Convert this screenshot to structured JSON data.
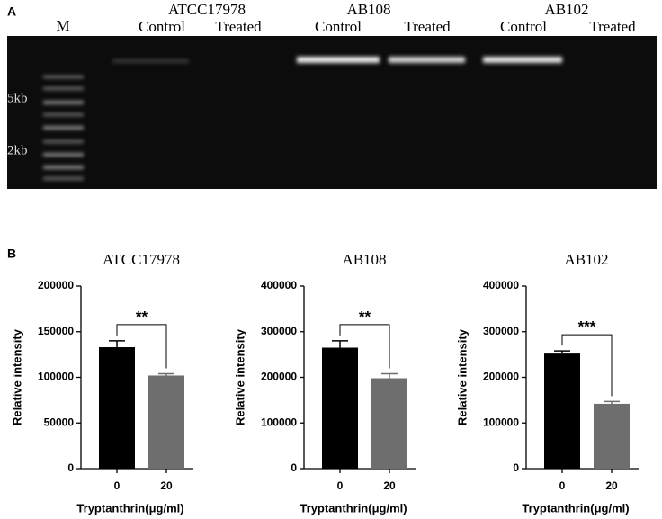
{
  "panel_a": {
    "label": "A",
    "marker": "M",
    "size_markers": [
      "5kb",
      "2kb"
    ],
    "groups": [
      {
        "name": "ATCC17978",
        "lanes": [
          "Control",
          "Treated"
        ]
      },
      {
        "name": "AB108",
        "lanes": [
          "Control",
          "Treated"
        ]
      },
      {
        "name": "AB102",
        "lanes": [
          "Control",
          "Treated"
        ]
      }
    ]
  },
  "panel_b": {
    "label": "B"
  },
  "chart_data": [
    {
      "type": "bar",
      "title": "ATCC17978",
      "categories": [
        "0",
        "20"
      ],
      "values": [
        133000,
        102000
      ],
      "errors": [
        7000,
        2000
      ],
      "colors": [
        "#000000",
        "#6e6e6e"
      ],
      "ylim": [
        0,
        200000
      ],
      "yticks": [
        0,
        50000,
        100000,
        150000,
        200000
      ],
      "xlabel": "Tryptanthrin(μg/ml)",
      "ylabel": "Relative intensity",
      "significance": "**"
    },
    {
      "type": "bar",
      "title": "AB108",
      "categories": [
        "0",
        "20"
      ],
      "values": [
        265000,
        198000
      ],
      "errors": [
        15000,
        10000
      ],
      "colors": [
        "#000000",
        "#6e6e6e"
      ],
      "ylim": [
        0,
        400000
      ],
      "yticks": [
        0,
        100000,
        200000,
        300000,
        400000
      ],
      "xlabel": "Tryptanthrin(μg/ml)",
      "ylabel": "Relative intensity",
      "significance": "**"
    },
    {
      "type": "bar",
      "title": "AB102",
      "categories": [
        "0",
        "20"
      ],
      "values": [
        252000,
        142000
      ],
      "errors": [
        6000,
        5000
      ],
      "colors": [
        "#000000",
        "#6e6e6e"
      ],
      "ylim": [
        0,
        400000
      ],
      "yticks": [
        0,
        100000,
        200000,
        300000,
        400000
      ],
      "xlabel": "Tryptanthrin(μg/ml)",
      "ylabel": "Relative intensity",
      "significance": "***"
    }
  ]
}
